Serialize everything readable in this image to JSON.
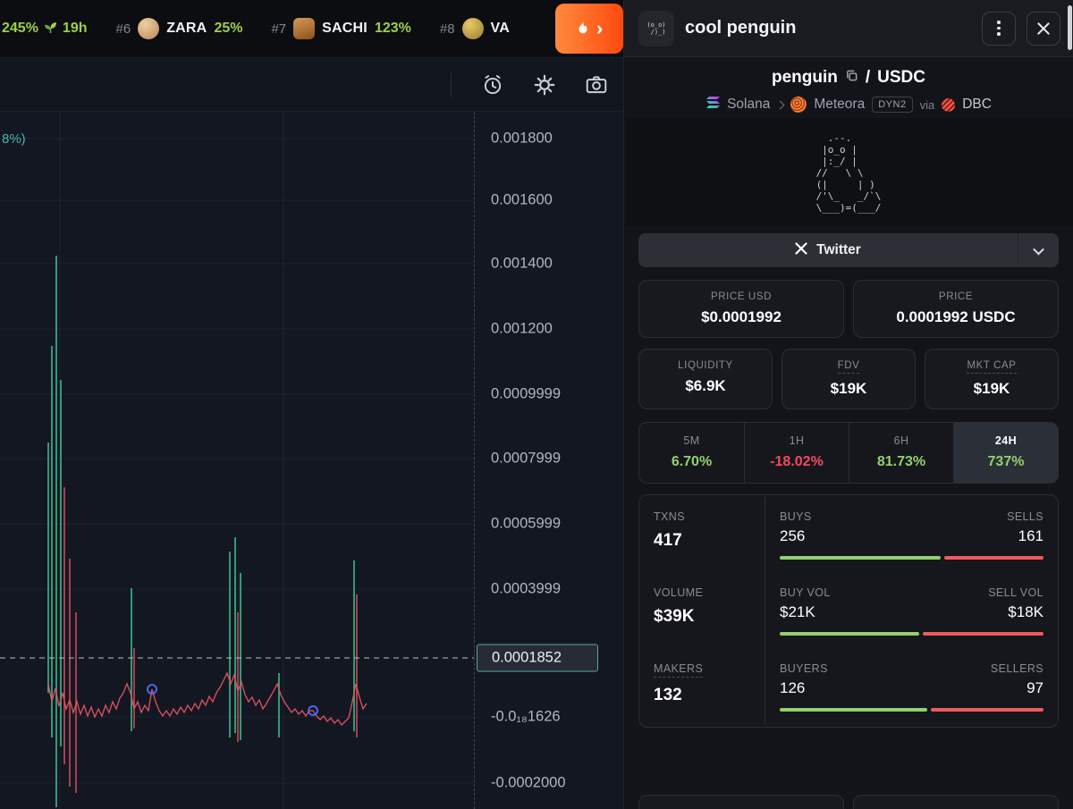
{
  "colors": {
    "green": "#93d06e",
    "red": "#f6475d",
    "topbar_green": "#9ecf4a",
    "bar_green": "#93d06e",
    "bar_red": "#ef5a5f",
    "teal_accent": "#3fb8af",
    "flame_orange": "#ff5c16"
  },
  "topbar": {
    "gainer_pct": "245%",
    "gainer_time": "19h",
    "items": [
      {
        "rank": "#6",
        "name": "ZARA",
        "pct": "25%"
      },
      {
        "rank": "#7",
        "name": "SACHI",
        "pct": "123%"
      },
      {
        "rank": "#8",
        "name": "VA",
        "pct": ""
      }
    ],
    "flame_chevron": "›"
  },
  "chart": {
    "corner_label": "8%)",
    "axis_labels": [
      "0.001800",
      "0.001600",
      "0.001400",
      "0.001200",
      "0.0009999",
      "0.0007999",
      "0.0005999",
      "0.0003999",
      "-0.0₁₈1626",
      "-0.0002000"
    ],
    "current_price": "0.0001852"
  },
  "panel": {
    "title": "cool penguin",
    "avatar_art": "(o_o)\n /)_)",
    "pair_base": "penguin",
    "pair_sep": "/",
    "pair_quote": "USDC",
    "chain_name": "Solana",
    "dex_name": "Meteora",
    "dex_tag": "DYN2",
    "via_label": "via",
    "via_dex": "DBC",
    "ascii_art": "  .--.\n |o_o |\n |:_/ |\n//   \\ \\\n(|     | )\n/'\\_   _/`\\\n\\___)=(___/",
    "social_label": "Twitter",
    "price_boxes": [
      {
        "label": "PRICE USD",
        "value": "$0.0001992"
      },
      {
        "label": "PRICE",
        "value": "0.0001992 USDC"
      }
    ],
    "metric_boxes": [
      {
        "label": "LIQUIDITY",
        "value": "$6.9K"
      },
      {
        "label": "FDV",
        "value": "$19K"
      },
      {
        "label": "MKT CAP",
        "value": "$19K"
      }
    ],
    "timeframes": [
      {
        "label": "5M",
        "value": "6.70%"
      },
      {
        "label": "1H",
        "value": "-18.02%"
      },
      {
        "label": "6H",
        "value": "81.73%"
      },
      {
        "label": "24H",
        "value": "737%"
      }
    ],
    "stats": [
      {
        "label": "TXNS",
        "value": "417",
        "a_label": "BUYS",
        "a_value": "256",
        "b_label": "SELLS",
        "b_value": "161",
        "a_pct": 61
      },
      {
        "label": "VOLUME",
        "value": "$39K",
        "a_label": "BUY VOL",
        "a_value": "$21K",
        "b_label": "SELL VOL",
        "b_value": "$18K",
        "a_pct": 53
      },
      {
        "label": "MAKERS",
        "value": "132",
        "a_label": "BUYERS",
        "a_value": "126",
        "b_label": "SELLERS",
        "b_value": "97",
        "a_pct": 56
      }
    ]
  }
}
